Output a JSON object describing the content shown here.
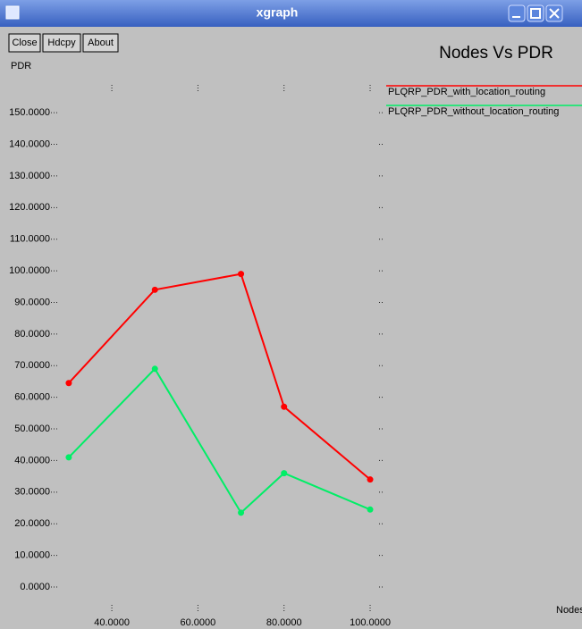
{
  "window": {
    "title": "xgraph",
    "buttons": [
      "Close",
      "Hdcpy",
      "About"
    ]
  },
  "chart_data": {
    "type": "line",
    "title": "Nodes Vs PDR",
    "y_label": "PDR",
    "x_label": "Nodes",
    "x": [
      30,
      50,
      70,
      80,
      100
    ],
    "series": [
      {
        "name": "PLQRP_PDR_with_location_routing",
        "color": "#ff0000",
        "values": [
          64.5,
          94,
          99,
          57,
          34
        ]
      },
      {
        "name": "PLQRP_PDR_without_location_routing",
        "color": "#00ee66",
        "values": [
          41,
          69,
          23.5,
          36,
          24.5
        ]
      }
    ],
    "xlim": [
      26.9,
      102.9
    ],
    "xticks": [
      {
        "value": 40,
        "label": "40.0000"
      },
      {
        "value": 60,
        "label": "60.0000"
      },
      {
        "value": 80,
        "label": "80.0000"
      },
      {
        "value": 100,
        "label": "100.0000"
      }
    ],
    "ylim": [
      -6.5,
      158.8
    ],
    "yticks": [
      {
        "value": 0,
        "label": "0.0000"
      },
      {
        "value": 10,
        "label": "10.0000"
      },
      {
        "value": 20,
        "label": "20.0000"
      },
      {
        "value": 30,
        "label": "30.0000"
      },
      {
        "value": 40,
        "label": "40.0000"
      },
      {
        "value": 50,
        "label": "50.0000"
      },
      {
        "value": 60,
        "label": "60.0000"
      },
      {
        "value": 70,
        "label": "70.0000"
      },
      {
        "value": 80,
        "label": "80.0000"
      },
      {
        "value": 90,
        "label": "90.0000"
      },
      {
        "value": 100,
        "label": "100.0000"
      },
      {
        "value": 110,
        "label": "110.0000"
      },
      {
        "value": 120,
        "label": "120.0000"
      },
      {
        "value": 130,
        "label": "130.0000"
      },
      {
        "value": 140,
        "label": "140.0000"
      },
      {
        "value": 150,
        "label": "150.0000"
      }
    ],
    "legend": "top-right"
  }
}
